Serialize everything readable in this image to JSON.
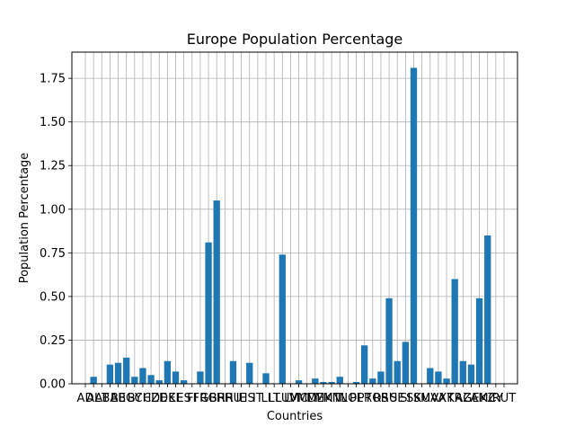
{
  "chart_data": {
    "type": "bar",
    "title": "Europe Population Percentage",
    "xlabel": "Countries",
    "ylabel": "Population Percentage",
    "ylim": [
      0,
      1.9
    ],
    "yticks": [
      "0.00",
      "0.25",
      "0.50",
      "0.75",
      "1.00",
      "1.25",
      "1.50",
      "1.75"
    ],
    "grid": true,
    "bar_color": "#1f77b4",
    "categories": [
      "AD",
      "AL",
      "AT",
      "BA",
      "BE",
      "BG",
      "BY",
      "CH",
      "CZ",
      "DE",
      "DK",
      "EE",
      "ES",
      "FI",
      "FR",
      "GB",
      "GR",
      "HR",
      "HU",
      "IE",
      "IS",
      "IT",
      "LI",
      "LT",
      "LU",
      "LV",
      "MC",
      "MD",
      "ME",
      "MK",
      "MT",
      "NL",
      "NO",
      "PL",
      "PT",
      "RO",
      "RS",
      "RU",
      "SE",
      "SI",
      "SK",
      "SM",
      "UA",
      "VA",
      "XK",
      "TR",
      "AZ",
      "GE",
      "AM",
      "KZ",
      "CY",
      "RUT"
    ],
    "values": [
      0.0,
      0.04,
      0.0,
      0.11,
      0.12,
      0.15,
      0.04,
      0.09,
      0.05,
      0.02,
      0.13,
      0.07,
      0.02,
      0.0,
      0.07,
      0.81,
      1.05,
      0.0,
      0.13,
      0.0,
      0.12,
      0.0,
      0.06,
      0.0,
      0.74,
      0.0,
      0.02,
      0.0,
      0.03,
      0.01,
      0.01,
      0.04,
      0.0,
      0.01,
      0.22,
      0.03,
      0.07,
      0.49,
      0.13,
      0.24,
      1.81,
      0.0,
      0.09,
      0.07,
      0.03,
      0.6,
      0.13,
      0.11,
      0.49,
      0.85,
      0.0,
      0.0
    ]
  }
}
